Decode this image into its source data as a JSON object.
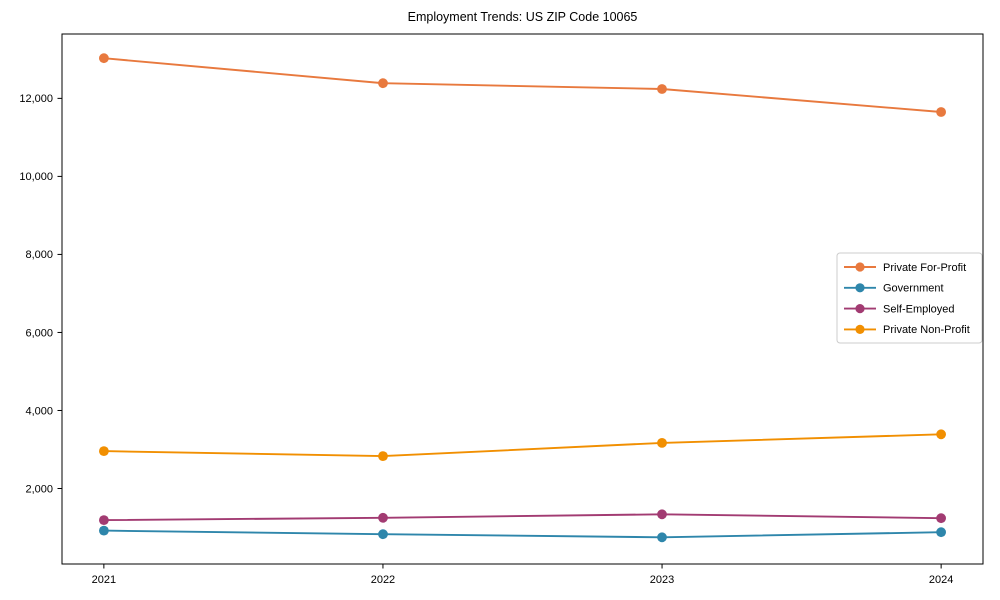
{
  "figure": {
    "background": "#ffffff",
    "frame_color": "#000000",
    "legend_border_color": "#cccccc"
  },
  "chart_data": {
    "type": "line",
    "title": "Employment Trends: US ZIP Code 10065",
    "xlabel": "",
    "ylabel": "",
    "x": [
      2021,
      2022,
      2023,
      2024
    ],
    "x_tick_labels": [
      "2021",
      "2022",
      "2023",
      "2024"
    ],
    "series": [
      {
        "name": "Private For-Profit",
        "color": "#E8793E",
        "values": [
          13030,
          12390,
          12240,
          11650
        ]
      },
      {
        "name": "Government",
        "color": "#2E86AB",
        "values": [
          920,
          830,
          750,
          880
        ]
      },
      {
        "name": "Self-Employed",
        "color": "#A23B72",
        "values": [
          1190,
          1250,
          1340,
          1240
        ]
      },
      {
        "name": "Private Non-Profit",
        "color": "#F18F01",
        "values": [
          2960,
          2830,
          3170,
          3390
        ]
      }
    ],
    "yticks": [
      {
        "value": 2000,
        "label": "2,000"
      },
      {
        "value": 4000,
        "label": "4,000"
      },
      {
        "value": 6000,
        "label": "6,000"
      },
      {
        "value": 8000,
        "label": "8,000"
      },
      {
        "value": 10000,
        "label": "10,000"
      },
      {
        "value": 12000,
        "label": "12,000"
      }
    ],
    "ylim": [
      65,
      13650
    ],
    "xlim": [
      2020.85,
      2024.15
    ],
    "grid": false,
    "marker": "circle",
    "legend": {
      "position": "center right"
    }
  }
}
